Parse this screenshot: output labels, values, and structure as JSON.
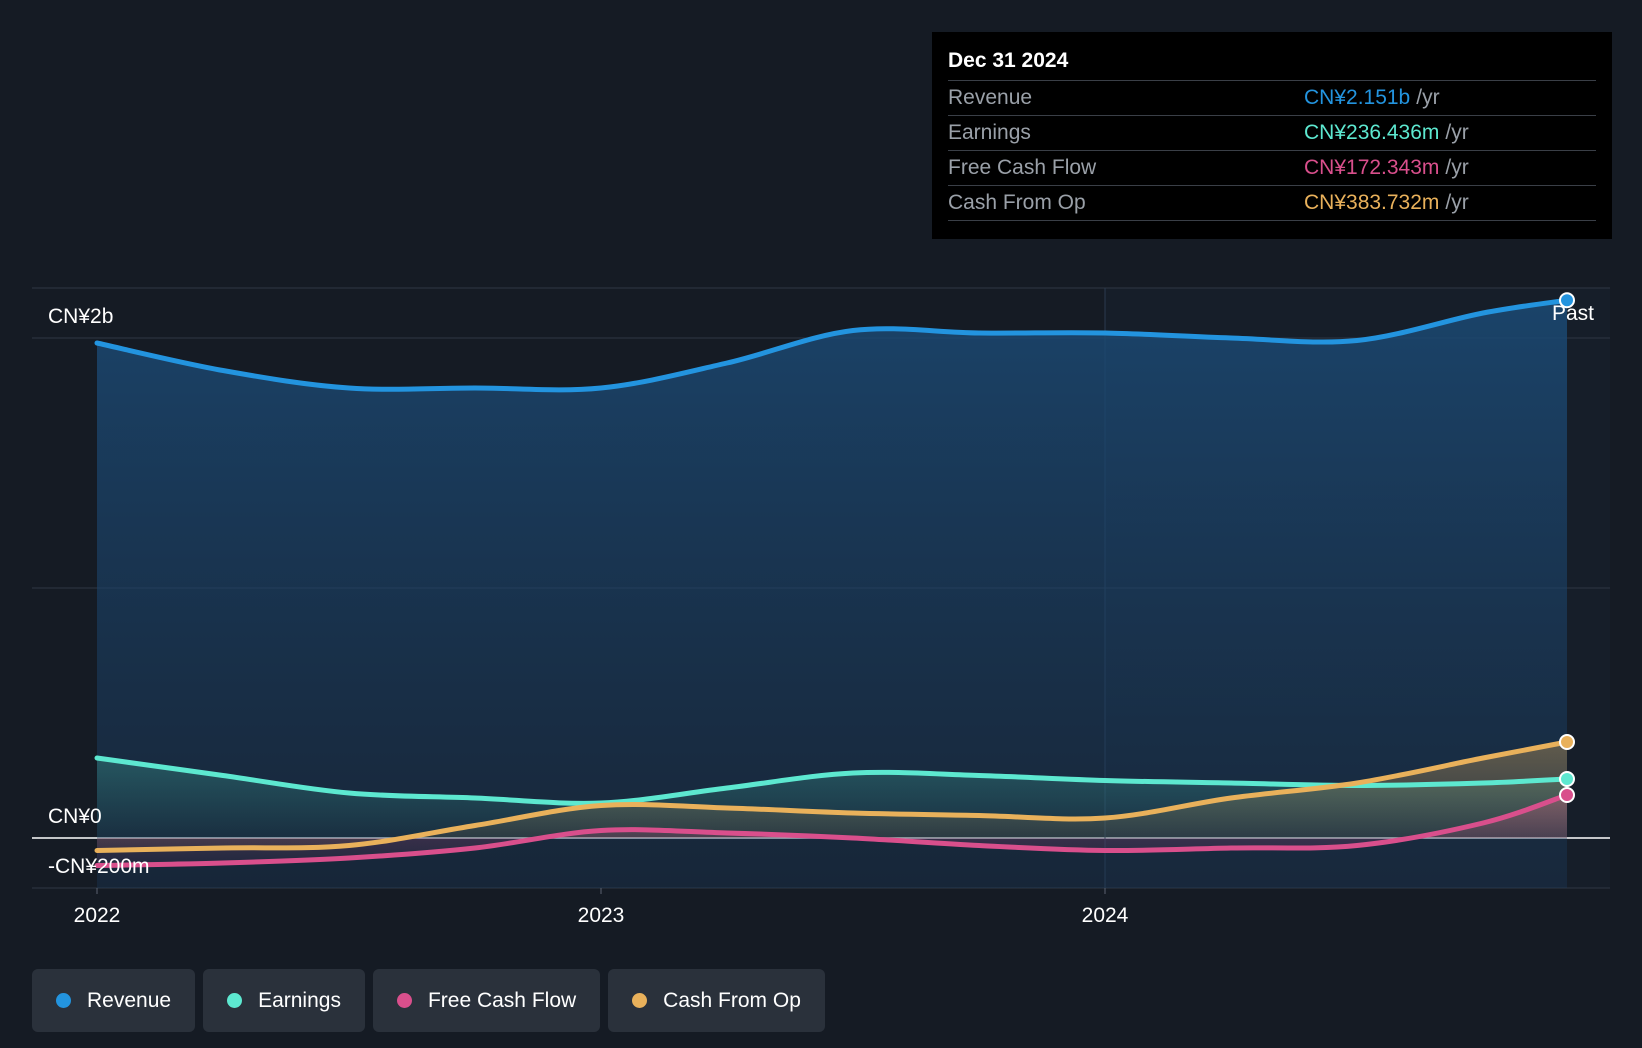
{
  "chart_data": {
    "type": "area",
    "x": [
      "2022-01",
      "2022-04",
      "2022-07",
      "2022-10",
      "2023-01",
      "2023-04",
      "2023-07",
      "2023-10",
      "2024-01",
      "2024-04",
      "2024-07",
      "2024-10",
      "2024-12"
    ],
    "series": [
      {
        "name": "Revenue",
        "color": "#2394df",
        "values": [
          1.98,
          1.87,
          1.8,
          1.8,
          1.8,
          1.9,
          2.03,
          2.02,
          2.02,
          2.0,
          1.99,
          2.1,
          2.151
        ]
      },
      {
        "name": "Earnings",
        "color": "#5de8d0",
        "values": [
          0.32,
          0.25,
          0.18,
          0.16,
          0.14,
          0.2,
          0.26,
          0.25,
          0.23,
          0.22,
          0.21,
          0.22,
          0.236
        ]
      },
      {
        "name": "Free Cash Flow",
        "color": "#d94f8c",
        "values": [
          -0.11,
          -0.1,
          -0.08,
          -0.04,
          0.03,
          0.02,
          0.0,
          -0.03,
          -0.05,
          -0.04,
          -0.03,
          0.06,
          0.172
        ]
      },
      {
        "name": "Cash From Op",
        "color": "#e9b15b",
        "values": [
          -0.05,
          -0.04,
          -0.03,
          0.05,
          0.13,
          0.12,
          0.1,
          0.09,
          0.08,
          0.16,
          0.22,
          0.32,
          0.384
        ]
      }
    ],
    "ylim": [
      -0.2,
      2.2
    ],
    "y_ticks": [
      {
        "value": 2.0,
        "label": "CN¥2b"
      },
      {
        "value": 0,
        "label": "CN¥0"
      },
      {
        "value": -0.2,
        "label": "-CN¥200m"
      }
    ],
    "x_ticks": [
      {
        "value": "2022-01",
        "label": "2022"
      },
      {
        "value": "2023-01",
        "label": "2023"
      },
      {
        "value": "2024-01",
        "label": "2024"
      }
    ],
    "past_label": "Past",
    "legend_position": "bottom-left"
  },
  "tooltip": {
    "date": "Dec 31 2024",
    "unit": "/yr",
    "rows": [
      {
        "label": "Revenue",
        "value": "CN¥2.151b",
        "color": "#2394df"
      },
      {
        "label": "Earnings",
        "value": "CN¥236.436m",
        "color": "#5de8d0"
      },
      {
        "label": "Free Cash Flow",
        "value": "CN¥172.343m",
        "color": "#d94f8c"
      },
      {
        "label": "Cash From Op",
        "value": "CN¥383.732m",
        "color": "#e9b15b"
      }
    ]
  },
  "legend": [
    {
      "label": "Revenue",
      "color": "#2394df"
    },
    {
      "label": "Earnings",
      "color": "#5de8d0"
    },
    {
      "label": "Free Cash Flow",
      "color": "#d94f8c"
    },
    {
      "label": "Cash From Op",
      "color": "#e9b15b"
    }
  ]
}
